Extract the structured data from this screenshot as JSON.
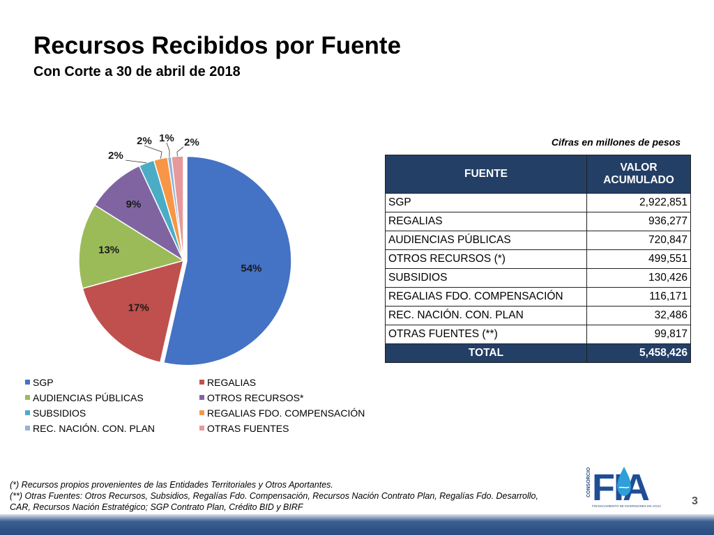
{
  "header": {
    "title": "Recursos Recibidos por Fuente",
    "subtitle": "Con Corte a 30 de abril de 2018"
  },
  "units_note": "Cifras en millones de pesos",
  "chart_data": {
    "type": "pie",
    "title": "",
    "legend_position": "bottom",
    "categories": [
      "SGP",
      "REGALIAS",
      "AUDIENCIAS PÚBLICAS",
      "OTROS RECURSOS*",
      "SUBSIDIOS",
      "REGALIAS FDO. COMPENSACIÓN",
      "REC. NACIÓN.  CON. PLAN",
      "OTRAS FUENTES"
    ],
    "values": [
      2922851,
      936277,
      720847,
      499551,
      130426,
      116171,
      32486,
      99817
    ],
    "data_labels": [
      "54%",
      "17%",
      "13%",
      "9%",
      "2%",
      "2%",
      "1%",
      "2%"
    ],
    "colors": [
      "#4472c4",
      "#c0504d",
      "#9bbb59",
      "#8064a2",
      "#4bacc6",
      "#f79646",
      "#95b3d7",
      "#e6999a"
    ]
  },
  "table": {
    "headers": [
      "FUENTE",
      "VALOR ACUMULADO"
    ],
    "rows": [
      [
        "SGP",
        "2,922,851"
      ],
      [
        "REGALIAS",
        "936,277"
      ],
      [
        "AUDIENCIAS PÚBLICAS",
        "720,847"
      ],
      [
        "OTROS RECURSOS (*)",
        "499,551"
      ],
      [
        "SUBSIDIOS",
        "130,426"
      ],
      [
        "REGALIAS FDO. COMPENSACIÓN",
        "116,171"
      ],
      [
        "REC. NACIÓN.  CON. PLAN",
        "32,486"
      ],
      [
        "OTRAS FUENTES (**)",
        "99,817"
      ]
    ],
    "total": [
      "TOTAL",
      "5,458,426"
    ],
    "header_color": "#243f66"
  },
  "footnotes": [
    "(*) Recursos propios provenientes de  las Entidades Territoriales y Otros Aportantes.",
    "(**) Otras Fuentes: Otros Recursos, Subsidios, Regalías Fdo. Compensación, Recursos Nación Contrato Plan, Regalías Fdo. Desarrollo,",
    "CAR, Recursos Nación Estratégico; SGP Contrato Plan, Crédito BID y BIRF"
  ],
  "page_number": "3",
  "logo": {
    "text": "FIA",
    "side_text": "CONSORCIO",
    "tagline": "FINANCIAMIENTO DE INVERSIONES EN AGUA",
    "icon": "water-drop-icon"
  }
}
